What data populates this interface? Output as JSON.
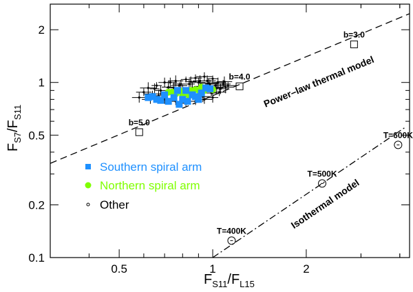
{
  "chart_data": {
    "type": "scatter",
    "xscale": "log",
    "yscale": "log",
    "xlim": [
      0.3,
      4.3
    ],
    "ylim": [
      0.1,
      2.8
    ],
    "xticks": [
      {
        "value": 0.5,
        "label": "0.5"
      },
      {
        "value": 1,
        "label": "1"
      },
      {
        "value": 2,
        "label": "2"
      }
    ],
    "yticks": [
      {
        "value": 0.1,
        "label": "0.1"
      },
      {
        "value": 0.2,
        "label": "0.2"
      },
      {
        "value": 0.5,
        "label": "0.5"
      },
      {
        "value": 1,
        "label": "1"
      },
      {
        "value": 2,
        "label": "2"
      }
    ],
    "xlabel": {
      "main": "F",
      "sub1": "S11",
      "mid": "/F",
      "sub2": "L15"
    },
    "ylabel": {
      "main": "F",
      "sub1": "S7",
      "mid": "/F",
      "sub2": "S11"
    },
    "grid": false,
    "legend_position": "lower-left",
    "series": [
      {
        "name": "Southern spiral arm",
        "marker": "square",
        "color": "#1e90ff",
        "points": [
          [
            0.62,
            0.82
          ],
          [
            0.66,
            0.8
          ],
          [
            0.68,
            0.79
          ],
          [
            0.72,
            0.78
          ],
          [
            0.75,
            0.82
          ],
          [
            0.78,
            0.75
          ],
          [
            0.8,
            0.8
          ],
          [
            0.83,
            0.78
          ],
          [
            0.86,
            0.85
          ],
          [
            0.88,
            0.83
          ],
          [
            0.92,
            0.87
          ],
          [
            0.95,
            0.93
          ],
          [
            0.7,
            0.85
          ],
          [
            0.77,
            0.9
          ],
          [
            0.82,
            0.9
          ],
          [
            0.98,
            0.92
          ],
          [
            0.64,
            0.83
          ],
          [
            0.9,
            0.8
          ]
        ]
      },
      {
        "name": "Northern spiral arm",
        "marker": "circle",
        "color": "#7fff00",
        "points": [
          [
            0.72,
            0.88
          ],
          [
            0.76,
            0.86
          ],
          [
            0.79,
            0.89
          ],
          [
            0.82,
            0.87
          ],
          [
            0.85,
            0.9
          ],
          [
            0.88,
            0.91
          ],
          [
            0.91,
            0.89
          ],
          [
            0.94,
            0.9
          ],
          [
            0.97,
            0.92
          ],
          [
            1.0,
            0.91
          ],
          [
            0.84,
            0.84
          ],
          [
            0.8,
            0.84
          ],
          [
            0.74,
            0.88
          ],
          [
            0.92,
            0.94
          ]
        ]
      },
      {
        "name": "Other",
        "marker": "cross",
        "color": "#000000",
        "points": [
          [
            0.58,
            0.82
          ],
          [
            0.6,
            0.88
          ],
          [
            0.62,
            0.93
          ],
          [
            0.64,
            0.86
          ],
          [
            0.66,
            0.96
          ],
          [
            0.68,
            0.9
          ],
          [
            0.7,
            1.0
          ],
          [
            0.72,
            0.94
          ],
          [
            0.74,
            0.86
          ],
          [
            0.76,
            1.02
          ],
          [
            0.78,
            0.96
          ],
          [
            0.8,
            0.91
          ],
          [
            0.82,
            1.04
          ],
          [
            0.84,
            0.98
          ],
          [
            0.86,
            0.93
          ],
          [
            0.88,
            1.06
          ],
          [
            0.9,
            1.0
          ],
          [
            0.92,
            0.95
          ],
          [
            0.94,
            1.08
          ],
          [
            0.96,
            1.02
          ],
          [
            0.98,
            0.98
          ],
          [
            1.0,
            1.05
          ],
          [
            1.02,
            0.96
          ],
          [
            1.04,
            1.0
          ],
          [
            1.06,
            0.92
          ],
          [
            1.08,
            0.98
          ],
          [
            1.1,
            0.94
          ],
          [
            1.12,
            0.96
          ],
          [
            0.7,
            0.8
          ],
          [
            0.76,
            0.78
          ],
          [
            0.82,
            0.76
          ],
          [
            0.88,
            0.78
          ],
          [
            0.94,
            0.8
          ],
          [
            1.0,
            0.82
          ],
          [
            0.65,
            0.92
          ],
          [
            0.73,
            1.0
          ],
          [
            0.85,
            1.01
          ],
          [
            0.97,
            0.99
          ],
          [
            0.99,
            0.87
          ],
          [
            1.05,
            0.88
          ],
          [
            0.67,
            0.84
          ],
          [
            0.79,
            0.98
          ],
          [
            0.91,
            1.02
          ],
          [
            1.03,
            0.93
          ],
          [
            0.87,
            0.85
          ],
          [
            0.63,
            0.8
          ],
          [
            0.75,
            0.93
          ],
          [
            0.93,
            0.83
          ],
          [
            1.09,
            1.01
          ],
          [
            0.81,
            0.86
          ]
        ]
      }
    ],
    "models": [
      {
        "name": "Power-law thermal model",
        "style": "dashed",
        "label": "Power–law thermal model",
        "line": [
          [
            0.3,
            0.345
          ],
          [
            4.3,
            2.47
          ]
        ],
        "markers": [
          {
            "label": "b=5.0",
            "x": 0.58,
            "y": 0.52
          },
          {
            "label": "b=4.0",
            "x": 1.22,
            "y": 0.95
          },
          {
            "label": "b=3.0",
            "x": 2.85,
            "y": 1.65
          }
        ]
      },
      {
        "name": "Isothermal model",
        "style": "dash-dot",
        "label": "Isothermal model",
        "line": [
          [
            1.0,
            0.1
          ],
          [
            4.2,
            0.56
          ]
        ],
        "markers": [
          {
            "label": "T=400K",
            "x": 1.15,
            "y": 0.125
          },
          {
            "label": "T=500K",
            "x": 2.25,
            "y": 0.265
          },
          {
            "label": "T=600K",
            "x": 3.95,
            "y": 0.44
          }
        ]
      }
    ]
  }
}
